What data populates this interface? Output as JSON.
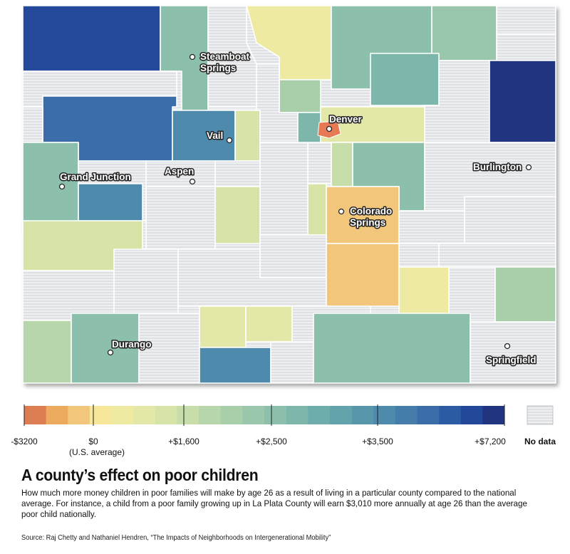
{
  "cities": [
    {
      "id": "steamboat-springs",
      "lines": [
        "Steamboat",
        "Springs"
      ]
    },
    {
      "id": "denver",
      "lines": [
        "Denver"
      ]
    },
    {
      "id": "vail",
      "lines": [
        "Vail"
      ]
    },
    {
      "id": "burlington",
      "lines": [
        "Burlington"
      ]
    },
    {
      "id": "grand-junction",
      "lines": [
        "Grand Junction"
      ]
    },
    {
      "id": "aspen",
      "lines": [
        "Aspen"
      ]
    },
    {
      "id": "colorado-springs",
      "lines": [
        "Colorado",
        "Springs"
      ]
    },
    {
      "id": "durango",
      "lines": [
        "Durango"
      ]
    },
    {
      "id": "springfield",
      "lines": [
        "Springfield"
      ]
    }
  ],
  "legend": {
    "colors": [
      "#dd7e52",
      "#ecaa5e",
      "#f3c77b",
      "#f6e79b",
      "#eeeaa2",
      "#e3e8a9",
      "#d6e4a7",
      "#c7ddaa",
      "#b8d6ab",
      "#a9cfaa",
      "#9ac7ab",
      "#8dc0ac",
      "#7db7ab",
      "#6eadab",
      "#63a3ab",
      "#5897aa",
      "#4e8aab",
      "#467ca9",
      "#3b6da8",
      "#2b5ba2",
      "#23489a",
      "#21347f"
    ],
    "tick_labels": [
      "-$3200",
      "$0",
      "+$1,600",
      "+$2,500",
      "+$3,500",
      "+$7,200"
    ],
    "zero_sublabel": "(U.S. average)",
    "no_data_label": "No data"
  },
  "caption": {
    "headline": "A county’s effect on poor children",
    "description": "How much more money children in poor families will make by age 26 as a result of living in a particular county compared to the national average. For instance, a child from a poor family growing up in La Plata County will earn $3,010 more annually at age 26 than the average poor child nationally.",
    "source": "Source: Raj Chetty and Nathaniel Hendren, “The Impacts of Neighborhoods on Intergenerational Mobility”"
  }
}
